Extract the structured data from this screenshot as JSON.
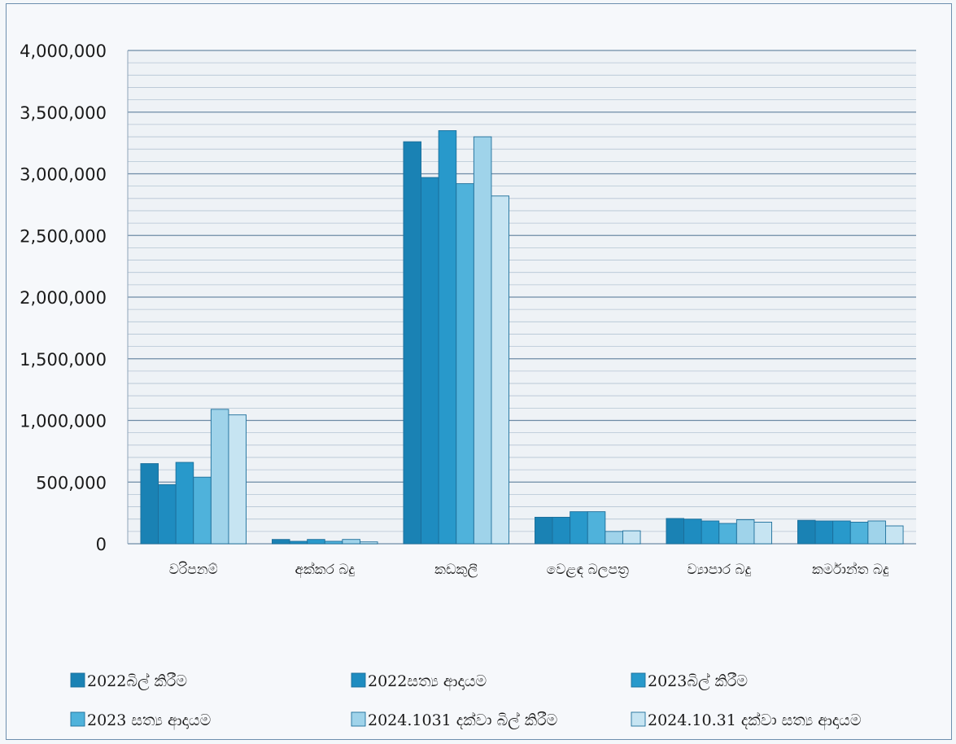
{
  "chart_data": {
    "type": "bar",
    "categories": [
      "වරිපනම්",
      "අක්කර බදු",
      "කඩකුලී",
      "වෙළඳ බලපත්‍ර",
      "ව්‍යාපාර බදු",
      "කර්මාන්ත බදු"
    ],
    "series": [
      {
        "name": "2022බිල් කිරීම",
        "color": "#1a82b4",
        "values": [
          650000,
          35000,
          3260000,
          215000,
          205000,
          190000
        ]
      },
      {
        "name": "2022සත්‍ය ආදායම",
        "color": "#1e8cc0",
        "values": [
          480000,
          20000,
          2970000,
          215000,
          200000,
          185000
        ]
      },
      {
        "name": "2023බිල් කිරීම",
        "color": "#2899cb",
        "values": [
          660000,
          35000,
          3350000,
          260000,
          185000,
          185000
        ]
      },
      {
        "name": "2023 සත්‍ය ආදායම",
        "color": "#4fb2db",
        "values": [
          540000,
          20000,
          2920000,
          260000,
          165000,
          175000
        ]
      },
      {
        "name": "2024.1031 දක්වා බිල් කිරීම",
        "color": "#9fd3ea",
        "values": [
          1090000,
          35000,
          3300000,
          100000,
          195000,
          185000
        ]
      },
      {
        "name": "2024.10.31 දක්වා සත්‍ය ආදායම",
        "color": "#c6e4f2",
        "values": [
          1045000,
          15000,
          2820000,
          105000,
          175000,
          145000
        ]
      }
    ],
    "ylim": [
      0,
      4000000
    ],
    "yticks": [
      "0",
      "500,000",
      "1,000,000",
      "1,500,000",
      "2,000,000",
      "2,500,000",
      "3,000,000",
      "3,500,000",
      "4,000,000"
    ],
    "title": "",
    "xlabel": "",
    "ylabel": "",
    "grid": true,
    "legend_position": "bottom"
  }
}
